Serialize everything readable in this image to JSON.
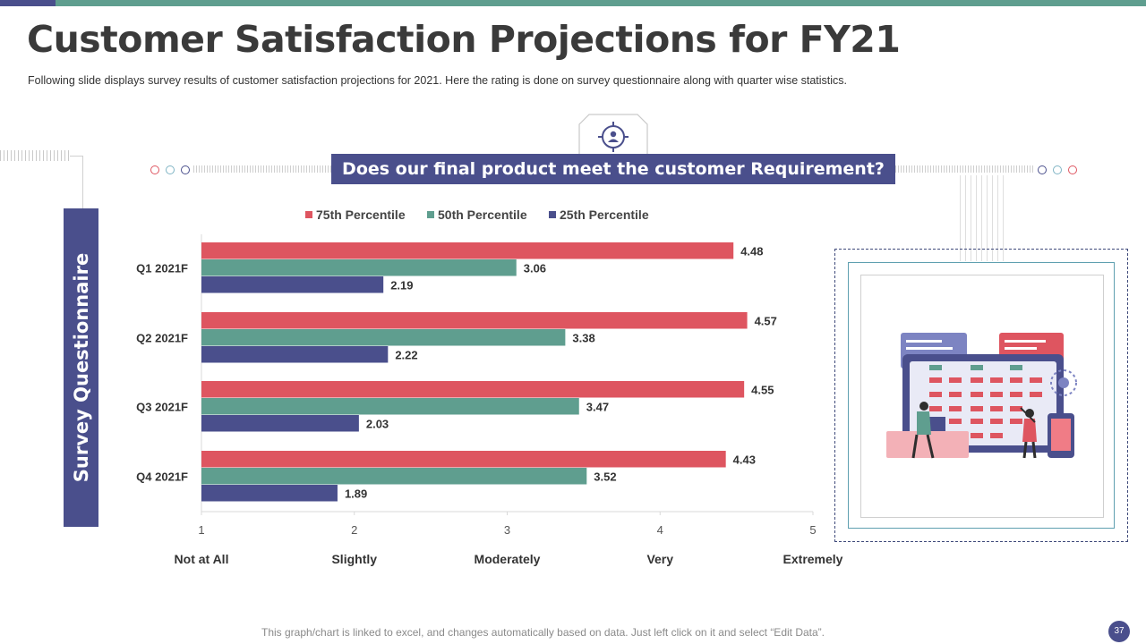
{
  "slide": {
    "title": "Customer Satisfaction Projections for FY21",
    "subtitle": "Following slide displays survey results of customer satisfaction projections for 2021. Here the rating is done on survey questionnaire along with quarter wise statistics.",
    "question": "Does our final product meet the customer  Requirement?",
    "side_label": "Survey Questionnaire",
    "footer": "This graph/chart is linked to excel, and changes automatically based on data. Just left click on it and select “Edit Data”.",
    "page_number": "37"
  },
  "colors": {
    "p75": "#de5560",
    "p50": "#5f9e8f",
    "p25": "#4a4f8c",
    "title": "#3a3a3a",
    "accent": "#4a4f8c"
  },
  "icons": {
    "badge": "target-person-icon",
    "illustration": "dashboard-team-illustration"
  },
  "chart_data": {
    "type": "bar",
    "orientation": "horizontal",
    "categories": [
      "Q1 2021F",
      "Q2 2021F",
      "Q3 2021F",
      "Q4 2021F"
    ],
    "series": [
      {
        "name": "75th Percentile",
        "color": "#de5560",
        "values": [
          4.48,
          4.57,
          4.55,
          4.43
        ]
      },
      {
        "name": "50th Percentile",
        "color": "#5f9e8f",
        "values": [
          3.06,
          3.38,
          3.47,
          3.52
        ]
      },
      {
        "name": "25th Percentile",
        "color": "#4a4f8c",
        "values": [
          2.19,
          2.22,
          2.03,
          1.89
        ]
      }
    ],
    "xlim": [
      1,
      5
    ],
    "xticks": [
      1,
      2,
      3,
      4,
      5
    ],
    "xtick_labels": [
      "Not at All",
      "Slightly",
      "Moderately",
      "Very",
      "Extremely"
    ],
    "legend_position": "top",
    "grid": false
  }
}
